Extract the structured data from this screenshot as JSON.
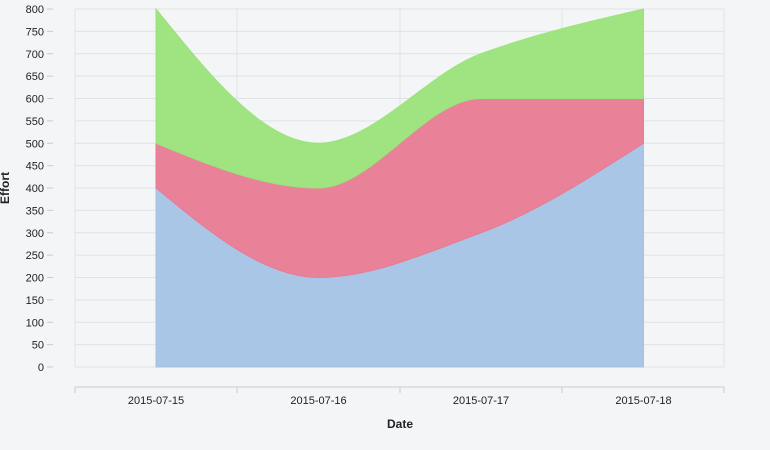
{
  "chart_data": {
    "type": "area",
    "stacked": true,
    "xlabel": "Date",
    "ylabel": "Effort",
    "x": [
      "2015-07-15",
      "2015-07-16",
      "2015-07-17",
      "2015-07-18"
    ],
    "ylim": [
      0,
      800
    ],
    "yticks": [
      0,
      50,
      100,
      150,
      200,
      250,
      300,
      350,
      400,
      450,
      500,
      550,
      600,
      650,
      700,
      750,
      800
    ],
    "grid": true,
    "series": [
      {
        "values": [
          400,
          200,
          300,
          500
        ],
        "color": "#a4c3e6"
      },
      {
        "values": [
          100,
          200,
          300,
          100
        ],
        "color": "#e87b94"
      },
      {
        "values": [
          300,
          100,
          100,
          200
        ],
        "color": "#9ae37a"
      }
    ]
  }
}
